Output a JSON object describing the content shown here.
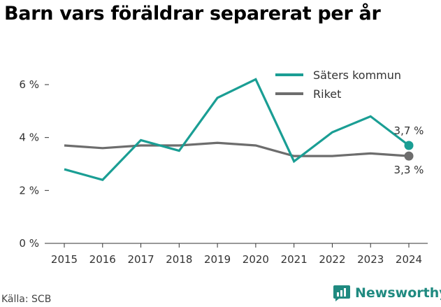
{
  "title": "Barn vars föräldrar separerat per år",
  "source": "Källa: SCB",
  "brand": {
    "name": "Newsworthy",
    "icon": "newsworthy-logo-icon",
    "color": "#1f8a80"
  },
  "chart_data": {
    "type": "line",
    "title": "Barn vars föräldrar separerat per år",
    "xlabel": "",
    "ylabel": "",
    "x": [
      2015,
      2016,
      2017,
      2018,
      2019,
      2020,
      2021,
      2022,
      2023,
      2024
    ],
    "x_tick_labels": [
      "2015",
      "2016",
      "2017",
      "2018",
      "2019",
      "2020",
      "2021",
      "2022",
      "2023",
      "2024"
    ],
    "ylim": [
      0,
      7
    ],
    "y_ticks": [
      0,
      2,
      4,
      6
    ],
    "y_tick_labels": [
      "0 %",
      "2 %",
      "4 %",
      "6 %"
    ],
    "grid": false,
    "legend_position": "top-right",
    "series": [
      {
        "name": "Säters kommun",
        "color": "#1a9e94",
        "values": [
          2.8,
          2.4,
          3.9,
          3.5,
          5.5,
          6.2,
          3.1,
          4.2,
          4.8,
          3.7
        ],
        "end_label": "3,7 %"
      },
      {
        "name": "Riket",
        "color": "#6d6d6d",
        "values": [
          3.7,
          3.6,
          3.7,
          3.7,
          3.8,
          3.7,
          3.3,
          3.3,
          3.4,
          3.3
        ],
        "end_label": "3,3 %"
      }
    ]
  }
}
